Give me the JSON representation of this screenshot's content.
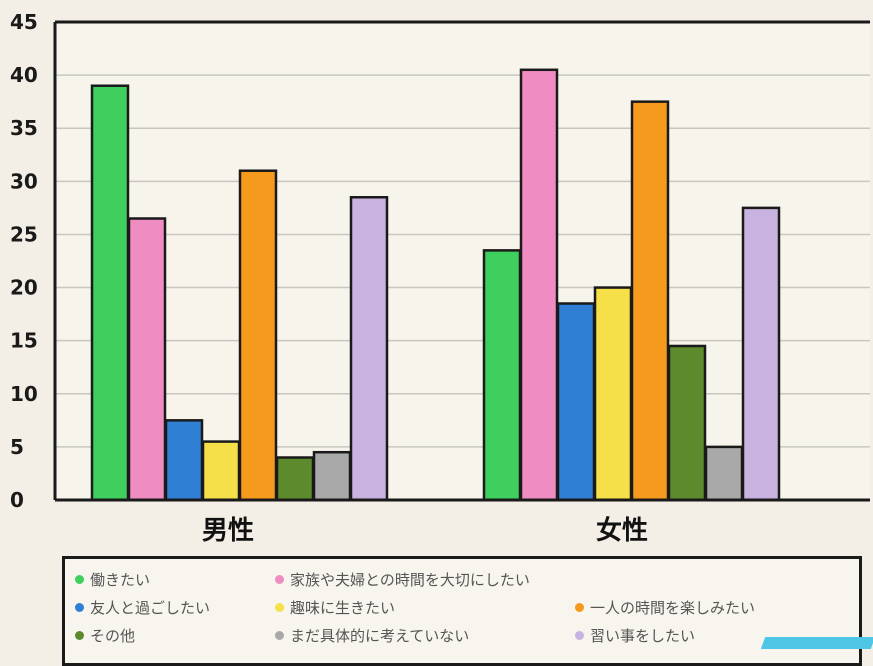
{
  "chart_data": {
    "type": "bar",
    "title": "",
    "xlabel": "",
    "ylabel": "",
    "ylim": [
      0,
      45
    ],
    "yticks": [
      0,
      5,
      10,
      15,
      20,
      25,
      30,
      35,
      40,
      45
    ],
    "grid": true,
    "legend_position": "bottom",
    "categories": [
      "男性",
      "女性"
    ],
    "series": [
      {
        "name": "働きたい",
        "color": "#3fcf5e",
        "values": [
          39,
          23.5
        ]
      },
      {
        "name": "家族や夫婦との時間を大切にしたい",
        "color": "#ef8cc2",
        "values": [
          26.5,
          40.5
        ]
      },
      {
        "name": "友人と過ごしたい",
        "color": "#2f7fd4",
        "values": [
          7.5,
          18.5
        ]
      },
      {
        "name": "趣味に生きたい",
        "color": "#f6e04a",
        "values": [
          5.5,
          20
        ]
      },
      {
        "name": "一人の時間を楽しみたい",
        "color": "#f59a1c",
        "values": [
          31,
          37.5
        ]
      },
      {
        "name": "その他",
        "color": "#5d8a2c",
        "values": [
          4,
          14.5
        ]
      },
      {
        "name": "まだ具体的に考えていない",
        "color": "#a9a9a9",
        "values": [
          4.5,
          5
        ]
      },
      {
        "name": "習い事をしたい",
        "color": "#c8b3e0",
        "values": [
          28.5,
          27.5
        ]
      }
    ]
  }
}
